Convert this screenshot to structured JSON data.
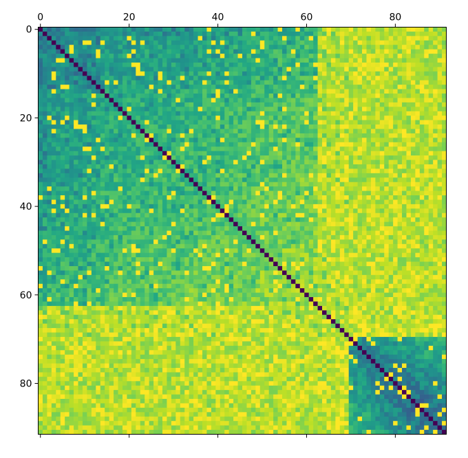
{
  "chart_data": {
    "type": "heatmap",
    "title": "",
    "xlabel": "",
    "ylabel": "",
    "n": 92,
    "xlim": [
      -0.5,
      91.5
    ],
    "ylim": [
      91.5,
      -0.5
    ],
    "x_ticks": [
      0,
      20,
      40,
      60,
      80
    ],
    "y_ticks": [
      0,
      20,
      40,
      60,
      80
    ],
    "x_tick_position": "top",
    "colormap": "viridis",
    "value_range": [
      0,
      1
    ],
    "diagonal_value": 0,
    "grid": false,
    "legend": "none",
    "row_profile": [
      0.38,
      0.42,
      0.45,
      0.47,
      0.48,
      0.5,
      0.52,
      0.5,
      0.49,
      0.48,
      0.5,
      0.52,
      0.52,
      0.55,
      0.58,
      0.6,
      0.6,
      0.62,
      0.62,
      0.63,
      0.63,
      0.64,
      0.64,
      0.65,
      0.65,
      0.64,
      0.64,
      0.65,
      0.66,
      0.66,
      0.66,
      0.66,
      0.66,
      0.68,
      0.7,
      0.7,
      0.72,
      0.72,
      0.71,
      0.71,
      0.72,
      0.72,
      0.73,
      0.73,
      0.74,
      0.75,
      0.75,
      0.76,
      0.76,
      0.78,
      0.8,
      0.8,
      0.8,
      0.8,
      0.82,
      0.82,
      0.83,
      0.83,
      0.84,
      0.85,
      0.86,
      0.86,
      0.87,
      0.88,
      0.88,
      0.88,
      0.9,
      0.92,
      0.93,
      0.93,
      0.93,
      0.93,
      0.92,
      0.92,
      0.92,
      0.92,
      0.92,
      0.92,
      0.92,
      0.92,
      0.92,
      0.92,
      0.92,
      0.93,
      0.93,
      0.93,
      0.93,
      0.93,
      0.93,
      0.93,
      0.93,
      0.93
    ],
    "lower_cluster": {
      "start": 70,
      "end": 91,
      "value": 0.45
    },
    "colors": {
      "stops": [
        "#440154",
        "#482475",
        "#414487",
        "#355f8d",
        "#2a788e",
        "#21918c",
        "#22a884",
        "#44bf70",
        "#7ad151",
        "#bddf26",
        "#fde725"
      ],
      "frame": "#000000"
    }
  }
}
